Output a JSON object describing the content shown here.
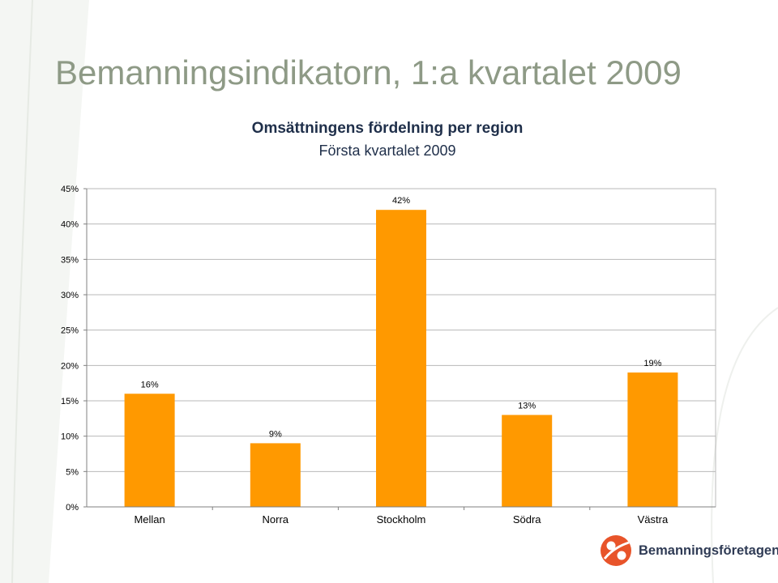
{
  "slide": {
    "title": "Bemanningsindikatorn, 1:a kvartalet 2009"
  },
  "chart_data": {
    "type": "bar",
    "title": "Omsättningens fördelning per region",
    "subtitle": "Första kvartalet 2009",
    "categories": [
      "Mellan",
      "Norra",
      "Stockholm",
      "Södra",
      "Västra"
    ],
    "values": [
      16,
      9,
      42,
      13,
      19
    ],
    "data_labels": [
      "16%",
      "9%",
      "42%",
      "13%",
      "19%"
    ],
    "y_ticks": [
      0,
      5,
      10,
      15,
      20,
      25,
      30,
      35,
      40,
      45
    ],
    "y_tick_labels": [
      "0%",
      "5%",
      "10%",
      "15%",
      "20%",
      "25%",
      "30%",
      "35%",
      "40%",
      "45%"
    ],
    "ylim": [
      0,
      45
    ],
    "xlabel": "",
    "ylabel": "",
    "grid": true,
    "legend": "none",
    "bar_color": "#ff9900",
    "grid_color": "#b8b8b8"
  },
  "logo": {
    "text": "Bemanningsföretagen",
    "color": "#e8542a"
  }
}
